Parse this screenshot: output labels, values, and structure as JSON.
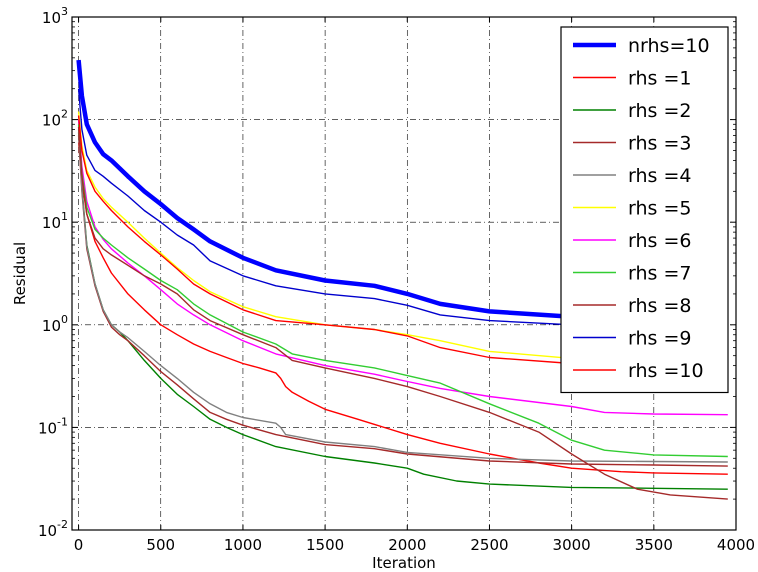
{
  "chart_data": {
    "type": "line",
    "title": "",
    "xlabel": "Iteration",
    "ylabel": "Residual",
    "xlim": [
      -40,
      4000
    ],
    "ylim": [
      0.01,
      1000
    ],
    "yscale": "log",
    "grid": true,
    "grid_style": "dash-dot",
    "legend_position": "top-right",
    "x_ticks": [
      "0",
      "500",
      "1000",
      "1500",
      "2000",
      "2500",
      "3000",
      "3500",
      "4000"
    ],
    "y_ticks": [
      {
        "base": "10",
        "exp": "-2"
      },
      {
        "base": "10",
        "exp": "-1"
      },
      {
        "base": "10",
        "exp": "0"
      },
      {
        "base": "10",
        "exp": "1"
      },
      {
        "base": "10",
        "exp": "2"
      },
      {
        "base": "10",
        "exp": "3"
      }
    ],
    "series": [
      {
        "name": "nrhs=10",
        "color": "#0000ff",
        "width": 4.5,
        "x": [
          0,
          20,
          50,
          100,
          150,
          200,
          300,
          400,
          500,
          600,
          700,
          800,
          1000,
          1200,
          1500,
          1800,
          2000,
          2200,
          2500,
          3000,
          3500,
          3950
        ],
        "y": [
          380,
          170,
          90,
          60,
          46,
          40,
          28,
          20,
          15,
          11,
          8.5,
          6.5,
          4.5,
          3.4,
          2.7,
          2.4,
          2.0,
          1.6,
          1.35,
          1.2,
          1.15,
          1.1
        ]
      },
      {
        "name": "rhs =1",
        "color": "#ff0000",
        "width": 1.4,
        "x": [
          0,
          20,
          50,
          100,
          150,
          200,
          300,
          400,
          500,
          600,
          700,
          800,
          900,
          1000,
          1100,
          1200,
          1230,
          1260,
          1300,
          1400,
          1500,
          1700,
          2000,
          2200,
          2500,
          2800,
          3000,
          3300,
          3500,
          3950
        ],
        "y": [
          60,
          25,
          12,
          6.5,
          4.5,
          3.2,
          2.0,
          1.4,
          1.0,
          0.8,
          0.65,
          0.55,
          0.48,
          0.42,
          0.38,
          0.34,
          0.3,
          0.25,
          0.22,
          0.18,
          0.15,
          0.12,
          0.085,
          0.07,
          0.055,
          0.045,
          0.04,
          0.037,
          0.036,
          0.035
        ]
      },
      {
        "name": "rhs =2",
        "color": "#008000",
        "width": 1.4,
        "x": [
          0,
          20,
          50,
          100,
          150,
          200,
          250,
          300,
          400,
          500,
          600,
          700,
          800,
          900,
          1000,
          1200,
          1500,
          1800,
          2000,
          2100,
          2300,
          2500,
          3000,
          3500,
          3950
        ],
        "y": [
          75,
          22,
          6,
          2.5,
          1.4,
          1.0,
          0.85,
          0.7,
          0.45,
          0.3,
          0.21,
          0.16,
          0.12,
          0.1,
          0.085,
          0.065,
          0.052,
          0.045,
          0.04,
          0.035,
          0.03,
          0.028,
          0.026,
          0.0255,
          0.025
        ]
      },
      {
        "name": "rhs =3",
        "color": "#a52a2a",
        "width": 1.4,
        "x": [
          0,
          20,
          50,
          100,
          150,
          200,
          250,
          300,
          400,
          500,
          600,
          700,
          800,
          900,
          1000,
          1200,
          1500,
          1800,
          2000,
          2500,
          3000,
          3500,
          3950
        ],
        "y": [
          70,
          20,
          5.5,
          2.4,
          1.35,
          0.95,
          0.8,
          0.7,
          0.5,
          0.35,
          0.26,
          0.19,
          0.14,
          0.12,
          0.105,
          0.085,
          0.068,
          0.062,
          0.055,
          0.047,
          0.044,
          0.043,
          0.042
        ]
      },
      {
        "name": "rhs =4",
        "color": "#808080",
        "width": 1.4,
        "x": [
          0,
          20,
          50,
          100,
          150,
          200,
          250,
          300,
          400,
          500,
          600,
          700,
          800,
          900,
          1000,
          1200,
          1230,
          1260,
          1500,
          1800,
          2000,
          2500,
          3000,
          3500,
          3950
        ],
        "y": [
          80,
          21,
          5.8,
          2.5,
          1.4,
          1.0,
          0.85,
          0.75,
          0.55,
          0.4,
          0.3,
          0.22,
          0.17,
          0.14,
          0.125,
          0.11,
          0.1,
          0.085,
          0.072,
          0.065,
          0.057,
          0.05,
          0.047,
          0.0465,
          0.046
        ]
      },
      {
        "name": "rhs =5",
        "color": "#ffff00",
        "width": 1.4,
        "x": [
          0,
          20,
          50,
          100,
          150,
          200,
          300,
          400,
          500,
          600,
          700,
          800,
          1000,
          1200,
          1500,
          1800,
          2000,
          2200,
          2500,
          3000,
          3500,
          3950
        ],
        "y": [
          120,
          55,
          32,
          22,
          17,
          14,
          10,
          7,
          5,
          3.6,
          2.7,
          2.1,
          1.5,
          1.2,
          1.0,
          0.9,
          0.8,
          0.7,
          0.55,
          0.47,
          0.44,
          0.42
        ]
      },
      {
        "name": "rhs =6",
        "color": "#ff00ff",
        "width": 1.4,
        "x": [
          0,
          20,
          50,
          100,
          150,
          200,
          300,
          400,
          500,
          600,
          700,
          800,
          1000,
          1200,
          1500,
          1800,
          2000,
          2200,
          2500,
          3000,
          3200,
          3500,
          3950
        ],
        "y": [
          100,
          35,
          16,
          9,
          6.8,
          5.5,
          4.0,
          3.0,
          2.2,
          1.6,
          1.25,
          1.0,
          0.7,
          0.52,
          0.4,
          0.33,
          0.28,
          0.24,
          0.2,
          0.16,
          0.14,
          0.135,
          0.133
        ]
      },
      {
        "name": "rhs =7",
        "color": "#32cd32",
        "width": 1.4,
        "x": [
          0,
          20,
          50,
          100,
          150,
          200,
          300,
          400,
          500,
          600,
          700,
          800,
          1000,
          1200,
          1300,
          1500,
          1800,
          2000,
          2200,
          2500,
          2800,
          3000,
          3200,
          3500,
          3950
        ],
        "y": [
          90,
          30,
          14,
          8.5,
          7,
          6,
          4.5,
          3.5,
          2.7,
          2.2,
          1.6,
          1.25,
          0.85,
          0.65,
          0.52,
          0.45,
          0.38,
          0.32,
          0.27,
          0.17,
          0.11,
          0.075,
          0.06,
          0.054,
          0.052
        ]
      },
      {
        "name": "rhs =8",
        "color": "#a52a2a",
        "width": 1.4,
        "x": [
          0,
          20,
          50,
          100,
          150,
          200,
          300,
          400,
          500,
          600,
          700,
          800,
          1000,
          1200,
          1300,
          1500,
          1800,
          2000,
          2200,
          2500,
          2800,
          3000,
          3200,
          3400,
          3600,
          3950
        ],
        "y": [
          85,
          28,
          12,
          7,
          5.5,
          4.8,
          3.8,
          3.0,
          2.5,
          2.0,
          1.4,
          1.1,
          0.8,
          0.6,
          0.45,
          0.38,
          0.3,
          0.25,
          0.2,
          0.14,
          0.09,
          0.055,
          0.035,
          0.025,
          0.022,
          0.02
        ]
      },
      {
        "name": "rhs =9",
        "color": "#0000cd",
        "width": 1.4,
        "x": [
          0,
          20,
          50,
          100,
          150,
          200,
          300,
          400,
          500,
          600,
          700,
          800,
          1000,
          1200,
          1500,
          1800,
          2000,
          2200,
          2500,
          3000,
          3500,
          3950
        ],
        "y": [
          200,
          80,
          45,
          32,
          28,
          24,
          18,
          13,
          10,
          7.5,
          6,
          4.2,
          3.0,
          2.4,
          2.0,
          1.8,
          1.55,
          1.25,
          1.1,
          1.0,
          0.98,
          0.95
        ]
      },
      {
        "name": "rhs =10",
        "color": "#ff0000",
        "width": 1.4,
        "x": [
          0,
          20,
          50,
          100,
          150,
          200,
          300,
          400,
          500,
          600,
          700,
          800,
          1000,
          1200,
          1500,
          1800,
          2000,
          2200,
          2500,
          3000,
          3500,
          3950
        ],
        "y": [
          110,
          50,
          30,
          20,
          16,
          13,
          9,
          6.5,
          4.8,
          3.5,
          2.5,
          2.0,
          1.4,
          1.1,
          1.0,
          0.9,
          0.78,
          0.6,
          0.48,
          0.42,
          0.39,
          0.37
        ]
      }
    ]
  }
}
